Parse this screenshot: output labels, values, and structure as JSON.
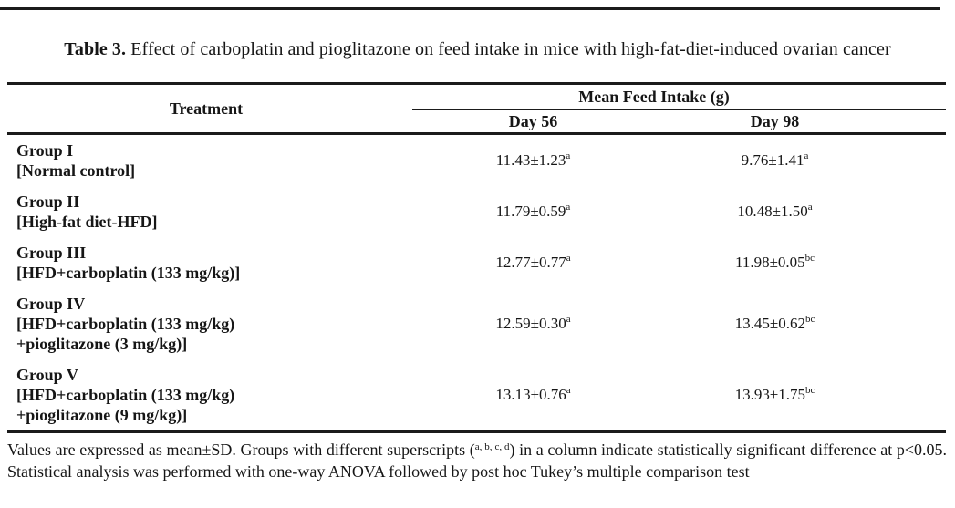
{
  "title": {
    "label": "Table 3.",
    "text": " Effect of carboplatin and pioglitazone on feed intake in mice with high-fat-diet-induced ovarian cancer"
  },
  "header": {
    "treatment": "Treatment",
    "group": "Mean Feed Intake (g)",
    "day56": "Day 56",
    "day98": "Day 98"
  },
  "rows": [
    {
      "group": "Group I",
      "desc": [
        "[Normal control]"
      ],
      "day56": {
        "value": "11.43±1.23",
        "sup": "a"
      },
      "day98": {
        "value": "9.76±1.41",
        "sup": "a"
      }
    },
    {
      "group": "Group II",
      "desc": [
        "[High-fat diet-HFD]"
      ],
      "day56": {
        "value": "11.79±0.59",
        "sup": "a"
      },
      "day98": {
        "value": "10.48±1.50",
        "sup": "a"
      }
    },
    {
      "group": "Group III",
      "desc": [
        "[HFD+carboplatin (133 mg/kg)]"
      ],
      "day56": {
        "value": "12.77±0.77",
        "sup": "a"
      },
      "day98": {
        "value": "11.98±0.05",
        "sup": "bc"
      }
    },
    {
      "group": "Group IV",
      "desc": [
        "[HFD+carboplatin (133 mg/kg)",
        "+pioglitazone (3 mg/kg)]"
      ],
      "day56": {
        "value": "12.59±0.30",
        "sup": "a"
      },
      "day98": {
        "value": "13.45±0.62",
        "sup": "bc"
      }
    },
    {
      "group": "Group V",
      "desc": [
        "[HFD+carboplatin (133 mg/kg)",
        "+pioglitazone (9 mg/kg)]"
      ],
      "day56": {
        "value": "13.13±0.76",
        "sup": "a"
      },
      "day98": {
        "value": "13.93±1.75",
        "sup": "bc"
      }
    }
  ],
  "footnote": {
    "part1": "Values are expressed as mean±SD. Groups with different superscripts (",
    "sup": "a, b, c, d",
    "part2": ") in a column indicate statistically significant difference at p<0.05. Statistical analysis was performed with one-way ANOVA followed by post hoc Tukey’s multiple comparison test"
  },
  "colors": {
    "background": "#ffffff",
    "text": "#161616",
    "rule": "#1b1b1b"
  }
}
